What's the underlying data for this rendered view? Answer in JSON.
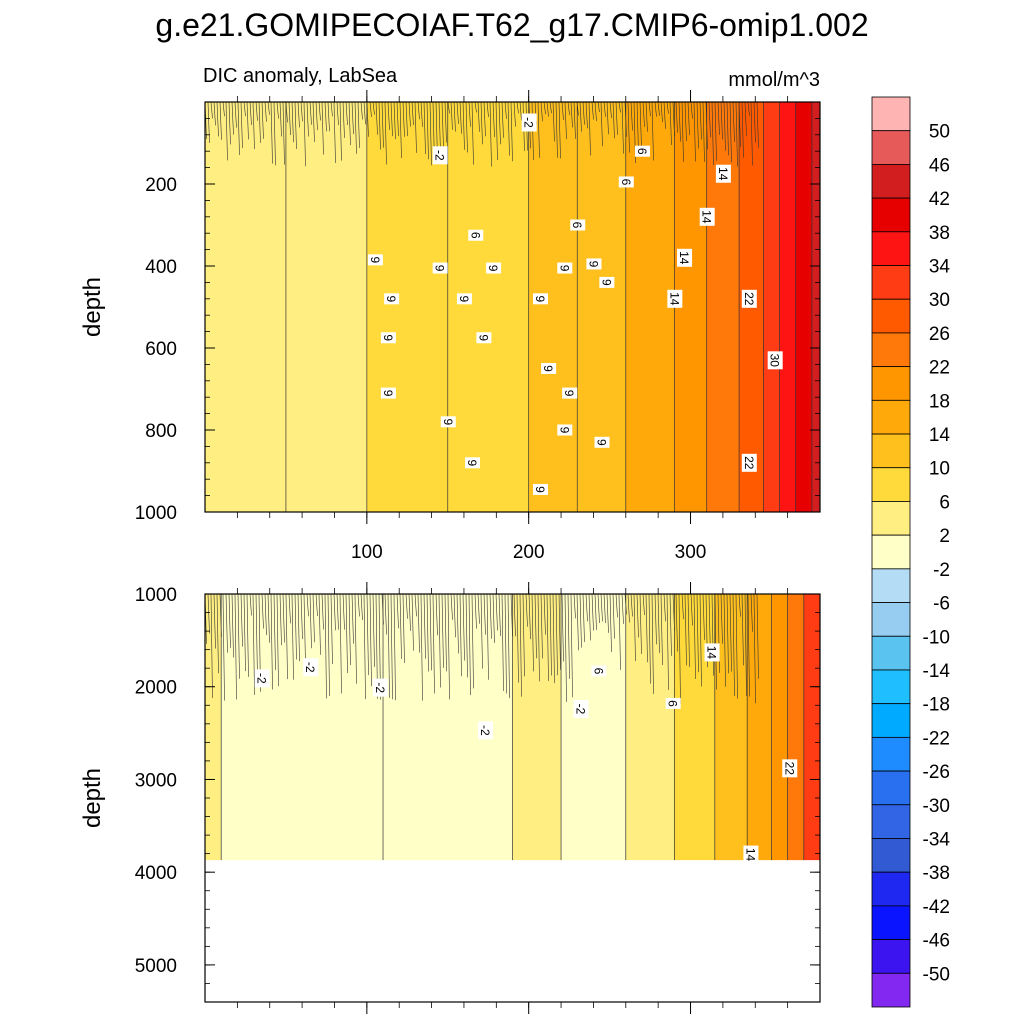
{
  "title": "g.e21.GOMIPECOIAF.T62_g17.CMIP6-omip1.002",
  "subtitle_left": "DIC anomaly, LabSea",
  "subtitle_right": "mmol/m^3",
  "colorbar": {
    "levels": [
      50,
      46,
      42,
      38,
      34,
      30,
      26,
      22,
      18,
      14,
      10,
      6,
      2,
      -2,
      -6,
      -10,
      -14,
      -18,
      -22,
      -26,
      -30,
      -34,
      -38,
      -42,
      -46,
      -50
    ],
    "labels": [
      "50",
      "46",
      "42",
      "38",
      "34",
      "30",
      "26",
      "22",
      "18",
      "14",
      "10",
      "6",
      "2",
      "-2",
      "-6",
      "-10",
      "-14",
      "-18",
      "-22",
      "-26",
      "-30",
      "-34",
      "-38",
      "-42",
      "-46",
      "-50"
    ],
    "colors": [
      "#ffb4b4",
      "#e65a5a",
      "#d21e1e",
      "#e60000",
      "#ff1414",
      "#ff3c14",
      "#ff5a00",
      "#ff780a",
      "#ff9600",
      "#ffaa0a",
      "#ffc01e",
      "#ffda3a",
      "#ffee82",
      "#ffffc8",
      "#b4dcf5",
      "#96cdf0",
      "#5ac3f0",
      "#1ebeff",
      "#00aaff",
      "#1e8cff",
      "#2870f0",
      "#3264e6",
      "#325ad2",
      "#1e28f0",
      "#0a14ff",
      "#3c14f0",
      "#8228f0"
    ]
  },
  "chart_data": {
    "type": "heatmap",
    "panels": [
      {
        "name": "upper",
        "ylabel": "depth",
        "xlim": [
          0,
          380
        ],
        "ylim": [
          0,
          1000
        ],
        "xticks": [
          100,
          200,
          300
        ],
        "xtick_labels": [
          "100",
          "200",
          "300"
        ],
        "yticks": [
          200,
          400,
          600,
          800,
          1000
        ],
        "ytick_labels": [
          "200",
          "400",
          "600",
          "800",
          "1000"
        ],
        "x_breaks": [
          0,
          50,
          100,
          150,
          200,
          230,
          260,
          290,
          310,
          330,
          345,
          355,
          365,
          375,
          380
        ],
        "band_values": [
          2,
          2,
          6,
          6,
          10,
          10,
          14,
          18,
          22,
          26,
          30,
          34,
          38,
          42
        ],
        "contour_labels": [
          {
            "text": "-2",
            "x": 200,
            "y": 50
          },
          {
            "text": "-2",
            "x": 145,
            "y": 130
          },
          {
            "text": "6",
            "x": 270,
            "y": 120
          },
          {
            "text": "6",
            "x": 260,
            "y": 195
          },
          {
            "text": "14",
            "x": 320,
            "y": 175
          },
          {
            "text": "14",
            "x": 310,
            "y": 280
          },
          {
            "text": "6",
            "x": 230,
            "y": 300
          },
          {
            "text": "6",
            "x": 167,
            "y": 325
          },
          {
            "text": "14",
            "x": 296,
            "y": 380
          },
          {
            "text": "9",
            "x": 105,
            "y": 385
          },
          {
            "text": "9",
            "x": 145,
            "y": 405
          },
          {
            "text": "9",
            "x": 178,
            "y": 405
          },
          {
            "text": "9",
            "x": 222,
            "y": 405
          },
          {
            "text": "9",
            "x": 240,
            "y": 395
          },
          {
            "text": "9",
            "x": 248,
            "y": 440
          },
          {
            "text": "9",
            "x": 115,
            "y": 480
          },
          {
            "text": "9",
            "x": 160,
            "y": 480
          },
          {
            "text": "9",
            "x": 207,
            "y": 480
          },
          {
            "text": "14",
            "x": 290,
            "y": 480
          },
          {
            "text": "22",
            "x": 336,
            "y": 480
          },
          {
            "text": "9",
            "x": 113,
            "y": 575
          },
          {
            "text": "9",
            "x": 172,
            "y": 575
          },
          {
            "text": "30",
            "x": 352,
            "y": 630
          },
          {
            "text": "9",
            "x": 212,
            "y": 650
          },
          {
            "text": "9",
            "x": 113,
            "y": 710
          },
          {
            "text": "9",
            "x": 225,
            "y": 710
          },
          {
            "text": "9",
            "x": 150,
            "y": 780
          },
          {
            "text": "9",
            "x": 222,
            "y": 800
          },
          {
            "text": "9",
            "x": 245,
            "y": 830
          },
          {
            "text": "22",
            "x": 336,
            "y": 880
          },
          {
            "text": "9",
            "x": 165,
            "y": 880
          },
          {
            "text": "9",
            "x": 207,
            "y": 945
          }
        ]
      },
      {
        "name": "lower",
        "ylabel": "depth",
        "xlim": [
          0,
          380
        ],
        "ylim": [
          1000,
          5400
        ],
        "xticks": [
          100,
          200,
          300
        ],
        "yticks": [
          1000,
          2000,
          3000,
          4000,
          5000
        ],
        "ytick_labels": [
          "1000",
          "2000",
          "3000",
          "4000",
          "5000"
        ],
        "data_bottom": 3870,
        "x_breaks": [
          0,
          10,
          110,
          190,
          220,
          260,
          290,
          315,
          335,
          350,
          360,
          370,
          380
        ],
        "band_values": [
          2,
          -2,
          -2,
          2,
          -2,
          2,
          6,
          10,
          14,
          18,
          22,
          30
        ],
        "contour_labels": [
          {
            "text": "-2",
            "x": 35,
            "y": 1910
          },
          {
            "text": "-2",
            "x": 65,
            "y": 1790
          },
          {
            "text": "-2",
            "x": 108,
            "y": 2010
          },
          {
            "text": "-2",
            "x": 173,
            "y": 2470
          },
          {
            "text": "6",
            "x": 243,
            "y": 1830
          },
          {
            "text": "-2",
            "x": 232,
            "y": 2240
          },
          {
            "text": "6",
            "x": 289,
            "y": 2180
          },
          {
            "text": "14",
            "x": 313,
            "y": 1630
          },
          {
            "text": "22",
            "x": 361,
            "y": 2880
          },
          {
            "text": "14",
            "x": 337,
            "y": 3810
          }
        ]
      }
    ]
  }
}
